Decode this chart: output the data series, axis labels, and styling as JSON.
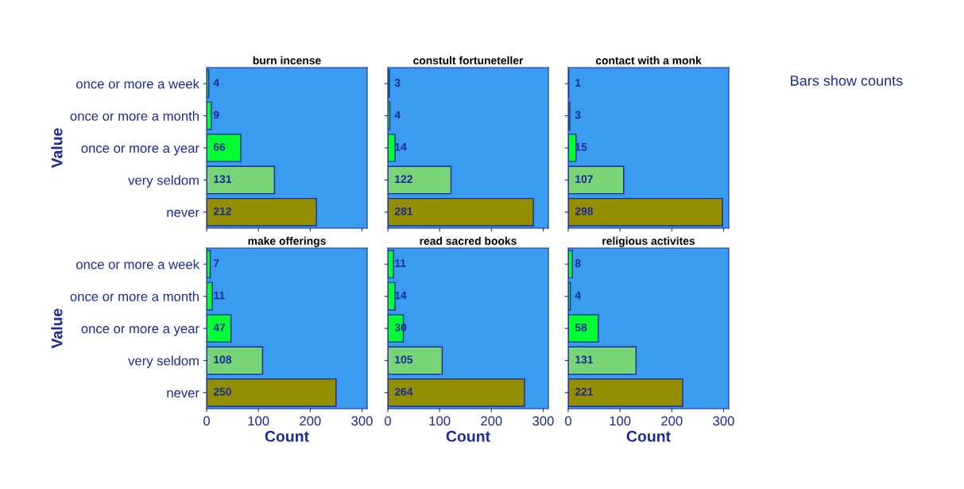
{
  "chart_data": [
    {
      "type": "bar",
      "orientation": "horizontal",
      "title": "burn incense",
      "ylabel": "Value",
      "categories": [
        "once or more a week",
        "once or more a month",
        "once or more a year",
        "very seldom",
        "never"
      ],
      "values": [
        4,
        9,
        66,
        131,
        212
      ],
      "colors": [
        "#00ff33",
        "#00ff33",
        "#00ff33",
        "#77d477",
        "#938f00"
      ],
      "xlim": [
        0,
        310
      ],
      "xticks": [
        0,
        100,
        200,
        300
      ],
      "data_labels": true,
      "tick_labels": "y",
      "grid": false,
      "legend": false
    },
    {
      "type": "bar",
      "orientation": "horizontal",
      "title": "constult fortuneteller",
      "categories": [
        null,
        null,
        null,
        null,
        null
      ],
      "values": [
        3,
        4,
        14,
        122,
        281
      ],
      "colors": [
        "#00ff33",
        "#00ff33",
        "#00ff33",
        "#77d477",
        "#938f00"
      ],
      "xlim": [
        0,
        310
      ],
      "xticks": [
        0,
        100,
        200,
        300
      ],
      "data_labels": true,
      "tick_labels": false,
      "grid": false,
      "legend": false
    },
    {
      "type": "bar",
      "orientation": "horizontal",
      "title": "contact with a monk",
      "categories": [
        null,
        null,
        null,
        null,
        null
      ],
      "values": [
        1,
        3,
        15,
        107,
        298
      ],
      "colors": [
        "#00ff33",
        "#00ff33",
        "#00ff33",
        "#77d477",
        "#938f00"
      ],
      "xlim": [
        0,
        310
      ],
      "xticks": [
        0,
        100,
        200,
        300
      ],
      "data_labels": true,
      "tick_labels": false,
      "grid": false,
      "legend": false,
      "annotations": [
        "Bars show counts"
      ]
    },
    {
      "type": "bar",
      "orientation": "horizontal",
      "title": "make offerings",
      "xlabel": "Count",
      "ylabel": "Value",
      "categories": [
        "once or more a week",
        "once or more a month",
        "once or more a year",
        "very seldom",
        "never"
      ],
      "values": [
        7,
        11,
        47,
        108,
        250
      ],
      "colors": [
        "#00ff33",
        "#00ff33",
        "#00ff33",
        "#77d477",
        "#938f00"
      ],
      "xlim": [
        0,
        310
      ],
      "xticks": [
        0,
        100,
        200,
        300
      ],
      "data_labels": true,
      "grid": false,
      "legend": false
    },
    {
      "type": "bar",
      "orientation": "horizontal",
      "title": "read sacred books",
      "xlabel": "Count",
      "categories": [
        null,
        null,
        null,
        null,
        null
      ],
      "values": [
        11,
        14,
        30,
        105,
        264
      ],
      "colors": [
        "#00ff33",
        "#00ff33",
        "#00ff33",
        "#77d477",
        "#938f00"
      ],
      "xlim": [
        0,
        310
      ],
      "xticks": [
        0,
        100,
        200,
        300
      ],
      "data_labels": true,
      "tick_labels": "x",
      "grid": false,
      "legend": false
    },
    {
      "type": "bar",
      "orientation": "horizontal",
      "title": "religious activites",
      "xlabel": "Count",
      "categories": [
        null,
        null,
        null,
        null,
        null
      ],
      "values": [
        8,
        4,
        58,
        131,
        221
      ],
      "colors": [
        "#00ff33",
        "#00ff33",
        "#00ff33",
        "#77d477",
        "#938f00"
      ],
      "xlim": [
        0,
        310
      ],
      "xticks": [
        0,
        100,
        200,
        300
      ],
      "data_labels": true,
      "tick_labels": "x",
      "grid": false,
      "legend": false
    }
  ]
}
